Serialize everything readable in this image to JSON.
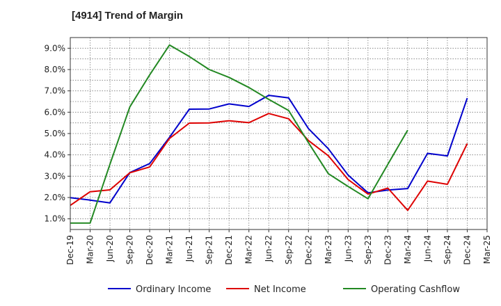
{
  "chart_data": {
    "type": "line",
    "title": "[4914]  Trend of Margin",
    "xlabel": "",
    "ylabel": "",
    "x": [
      "Dec-19",
      "Mar-20",
      "Jun-20",
      "Sep-20",
      "Dec-20",
      "Mar-21",
      "Jun-21",
      "Sep-21",
      "Dec-21",
      "Mar-22",
      "Jun-22",
      "Sep-22",
      "Dec-22",
      "Mar-23",
      "Jun-23",
      "Sep-23",
      "Dec-23",
      "Mar-24",
      "Jun-24",
      "Sep-24",
      "Dec-24",
      "Mar-25"
    ],
    "y_ticks": [
      "1.0%",
      "2.0%",
      "3.0%",
      "4.0%",
      "5.0%",
      "6.0%",
      "7.0%",
      "8.0%",
      "9.0%"
    ],
    "ylim": [
      0.5,
      9.5
    ],
    "grid": true,
    "legend_position": "bottom",
    "series": [
      {
        "name": "Ordinary Income",
        "color": "#0000cc",
        "values": [
          1.99,
          1.88,
          1.75,
          3.17,
          3.59,
          4.82,
          6.14,
          6.15,
          6.39,
          6.27,
          6.79,
          6.67,
          5.23,
          4.29,
          3.05,
          2.22,
          2.35,
          2.42,
          4.07,
          3.95,
          6.66,
          null
        ]
      },
      {
        "name": "Net Income",
        "color": "#dd0000",
        "values": [
          1.63,
          2.27,
          2.36,
          3.16,
          3.43,
          4.77,
          5.49,
          5.5,
          5.6,
          5.51,
          5.94,
          5.69,
          4.67,
          3.96,
          2.84,
          2.16,
          2.44,
          1.4,
          2.77,
          2.62,
          4.53,
          null
        ]
      },
      {
        "name": "Operating Cashflow",
        "color": "#228822",
        "values": [
          0.8,
          0.8,
          3.56,
          6.25,
          7.75,
          9.15,
          8.61,
          8.0,
          7.63,
          7.16,
          6.6,
          6.08,
          4.57,
          3.12,
          2.52,
          1.94,
          3.56,
          5.16,
          null,
          null,
          null,
          null
        ]
      }
    ]
  }
}
